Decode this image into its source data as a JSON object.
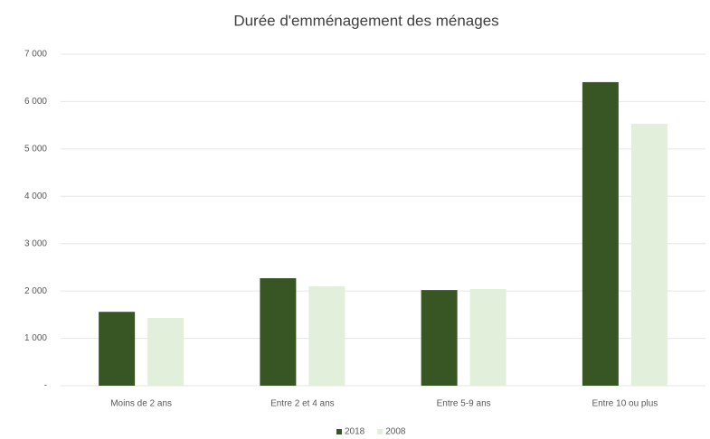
{
  "chart_data": {
    "type": "bar",
    "title": "Durée d'emménagement des ménages",
    "categories": [
      "Moins de 2 ans",
      "Entre 2 et 4 ans",
      "Entre 5-9 ans",
      "Entre 10 ou plus"
    ],
    "series": [
      {
        "name": "2018",
        "color": "#375623",
        "values": [
          1560,
          2270,
          2020,
          6410
        ]
      },
      {
        "name": "2008",
        "color": "#e2efda",
        "values": [
          1430,
          2100,
          2040,
          5530
        ]
      }
    ],
    "ylim": [
      0,
      7000
    ],
    "yticks": [
      {
        "value": 0,
        "label": "-"
      },
      {
        "value": 1000,
        "label": "1 000"
      },
      {
        "value": 2000,
        "label": "2 000"
      },
      {
        "value": 3000,
        "label": "3 000"
      },
      {
        "value": 4000,
        "label": "4 000"
      },
      {
        "value": 5000,
        "label": "5 000"
      },
      {
        "value": 6000,
        "label": "6 000"
      },
      {
        "value": 7000,
        "label": "7 000"
      }
    ],
    "grid": true,
    "legend": "bottom"
  }
}
